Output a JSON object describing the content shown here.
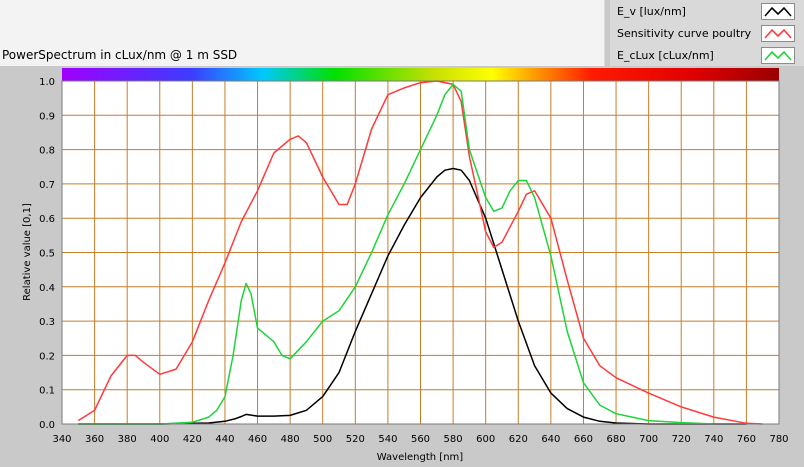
{
  "header": {
    "title": "PowerSpectrum in cLux/nm @ 1 m SSD"
  },
  "legend": {
    "items": [
      {
        "label": "E_v [lux/nm]",
        "color": "#000000"
      },
      {
        "label": "Sensitivity curve poultry",
        "color": "#ff3a3a"
      },
      {
        "label": "E_cLux [cLux/nm]",
        "color": "#1ed43a"
      }
    ]
  },
  "chart_data": {
    "type": "line",
    "title": "PowerSpectrum in cLux/nm @ 1 m SSD",
    "xlabel": "Wavelength [nm]",
    "ylabel": "Relative value [0,1]",
    "xlim": [
      340,
      780
    ],
    "ylim": [
      0.0,
      1.0
    ],
    "x_ticks": [
      340,
      360,
      380,
      400,
      420,
      440,
      460,
      480,
      500,
      520,
      540,
      560,
      580,
      600,
      620,
      640,
      660,
      680,
      700,
      720,
      740,
      760,
      780
    ],
    "y_ticks": [
      "0.0",
      "0.1",
      "0.2",
      "0.3",
      "0.4",
      "0.5",
      "0.6",
      "0.7",
      "0.8",
      "0.9",
      "1.0"
    ],
    "grid": true,
    "background_color": "#ffffff",
    "grid_color": "#c87d2a",
    "spectrum_bar": true,
    "series": [
      {
        "name": "E_v [lux/nm]",
        "color": "#000000",
        "x": [
          350,
          400,
          430,
          440,
          446,
          450,
          453,
          456,
          460,
          470,
          480,
          490,
          500,
          510,
          520,
          530,
          540,
          550,
          560,
          570,
          575,
          580,
          585,
          590,
          600,
          610,
          620,
          630,
          640,
          650,
          660,
          670,
          680,
          700,
          760
        ],
        "y": [
          0.0,
          0.0,
          0.003,
          0.008,
          0.015,
          0.022,
          0.028,
          0.026,
          0.023,
          0.023,
          0.025,
          0.04,
          0.08,
          0.15,
          0.27,
          0.38,
          0.49,
          0.58,
          0.66,
          0.72,
          0.74,
          0.745,
          0.74,
          0.71,
          0.6,
          0.45,
          0.3,
          0.17,
          0.09,
          0.045,
          0.02,
          0.008,
          0.003,
          0.0,
          0.0
        ]
      },
      {
        "name": "Sensitivity curve poultry",
        "color": "#ff3a3a",
        "x": [
          350,
          360,
          370,
          380,
          385,
          390,
          400,
          410,
          420,
          430,
          440,
          450,
          460,
          470,
          480,
          485,
          490,
          500,
          510,
          515,
          520,
          530,
          540,
          550,
          560,
          570,
          580,
          585,
          590,
          600,
          605,
          610,
          620,
          625,
          630,
          640,
          650,
          660,
          670,
          680,
          700,
          720,
          740,
          760,
          770
        ],
        "y": [
          0.01,
          0.04,
          0.14,
          0.2,
          0.2,
          0.18,
          0.145,
          0.16,
          0.24,
          0.36,
          0.47,
          0.59,
          0.68,
          0.79,
          0.83,
          0.84,
          0.82,
          0.72,
          0.64,
          0.64,
          0.7,
          0.86,
          0.96,
          0.98,
          0.995,
          1.0,
          0.99,
          0.94,
          0.78,
          0.56,
          0.515,
          0.53,
          0.62,
          0.67,
          0.68,
          0.6,
          0.42,
          0.25,
          0.17,
          0.135,
          0.09,
          0.05,
          0.02,
          0.002,
          0.0
        ]
      },
      {
        "name": "E_cLux [cLux/nm]",
        "color": "#1ed43a",
        "x": [
          350,
          400,
          420,
          430,
          435,
          440,
          445,
          450,
          453,
          456,
          460,
          470,
          475,
          480,
          490,
          500,
          510,
          520,
          530,
          540,
          550,
          560,
          570,
          575,
          580,
          585,
          590,
          600,
          605,
          610,
          615,
          620,
          625,
          630,
          640,
          650,
          660,
          670,
          680,
          700,
          720,
          740
        ],
        "y": [
          0.0,
          0.0,
          0.005,
          0.02,
          0.04,
          0.08,
          0.2,
          0.36,
          0.41,
          0.38,
          0.28,
          0.24,
          0.2,
          0.19,
          0.24,
          0.3,
          0.33,
          0.4,
          0.5,
          0.61,
          0.7,
          0.8,
          0.9,
          0.96,
          0.99,
          0.97,
          0.8,
          0.66,
          0.62,
          0.63,
          0.68,
          0.71,
          0.71,
          0.66,
          0.49,
          0.27,
          0.12,
          0.055,
          0.03,
          0.01,
          0.004,
          0.0
        ]
      }
    ]
  }
}
